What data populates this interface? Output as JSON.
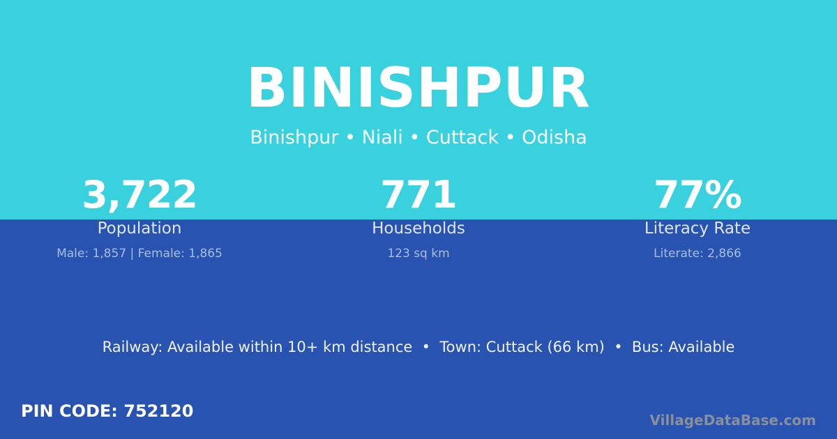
{
  "title": "BINISHPUR",
  "subtitle": "Binishpur • Niali • Cuttack • Odisha",
  "stats": [
    {
      "value": "3,722",
      "label": "Population",
      "detail": "Male: 1,857 | Female: 1,865"
    },
    {
      "value": "771",
      "label": "Households",
      "detail": "123 sq km"
    },
    {
      "value": "77%",
      "label": "Literacy Rate",
      "detail": "Literate: 2,866"
    }
  ],
  "info": "Railway: Available within 10+ km distance  •  Town: Cuttack (66 km)  •  Bus: Available",
  "pin": "PIN CODE: 752120",
  "brand": "VillageDataBase.com",
  "colors": {
    "top": "#38d1dd",
    "bottom": "#2853b0"
  }
}
